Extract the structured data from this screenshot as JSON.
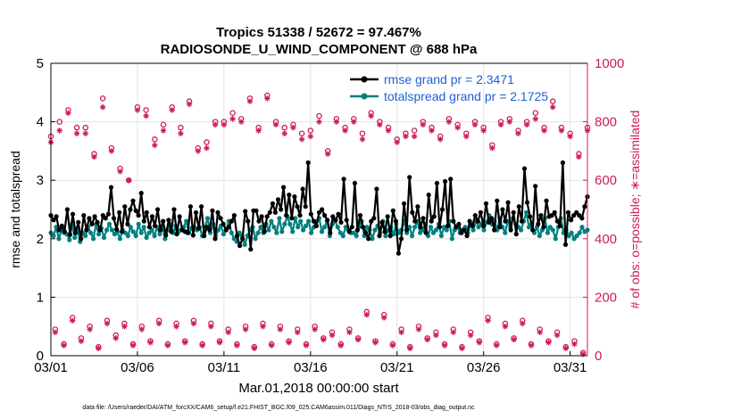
{
  "chart_data": {
    "type": "line",
    "title_line1": "Tropics 51338 / 52672 = 97.467%",
    "title_line2": "RADIOSONDE_U_WIND_COMPONENT @ 688 hPa",
    "xlabel": "Mar.01,2018 00:00:00 start",
    "ylabel_left": "rmse and totalspread",
    "ylabel_right": "# of obs: o=possible; ∗=assimilated",
    "xlim": [
      1,
      32
    ],
    "ylim_left": [
      0,
      5
    ],
    "ylim_right": [
      0,
      1000
    ],
    "x_tick_labels": [
      "03/01",
      "03/06",
      "03/11",
      "03/16",
      "03/21",
      "03/26",
      "03/31"
    ],
    "y_ticks_left": [
      "0",
      "1",
      "2",
      "3",
      "4",
      "5"
    ],
    "y_ticks_right": [
      "0",
      "200",
      "400",
      "600",
      "800",
      "1000"
    ],
    "grid": true,
    "legend_location": "top-right",
    "colors": {
      "rmse": "#000000",
      "spread": "#008080",
      "obs": "#cc1a5e",
      "legend_text": "#1f5fd6"
    },
    "series": [
      {
        "name": "rmse grand pr = 2.3471",
        "values": [
          2.4,
          2.32,
          2.38,
          2.15,
          2.22,
          2.12,
          2.5,
          2.07,
          2.42,
          2.1,
          2.28,
          2.0,
          2.4,
          2.15,
          2.35,
          2.25,
          2.38,
          2.28,
          2.15,
          2.4,
          2.35,
          2.42,
          2.88,
          2.35,
          2.16,
          2.45,
          2.12,
          2.55,
          2.25,
          2.5,
          2.65,
          2.48,
          2.4,
          2.78,
          2.3,
          2.45,
          2.2,
          2.38,
          2.22,
          2.5,
          2.15,
          2.3,
          2.06,
          2.32,
          2.12,
          2.5,
          2.08,
          2.38,
          2.15,
          2.12,
          2.1,
          2.55,
          2.06,
          2.45,
          2.18,
          2.55,
          2.05,
          2.2,
          2.15,
          2.48,
          2.0,
          2.45,
          2.35,
          2.25,
          2.15,
          2.2,
          2.3,
          2.4,
          2.05,
          1.88,
          2.0,
          2.47,
          2.3,
          1.82,
          2.48,
          2.48,
          2.3,
          2.38,
          2.12,
          2.38,
          2.45,
          2.6,
          2.45,
          2.67,
          2.5,
          2.88,
          2.4,
          2.75,
          2.35,
          2.72,
          2.55,
          2.4,
          2.85,
          2.55,
          3.3,
          2.42,
          2.3,
          2.22,
          2.45,
          2.5,
          2.4,
          2.32,
          2.1,
          2.38,
          2.32,
          2.42,
          2.28,
          3.02,
          2.32,
          2.12,
          2.2,
          2.95,
          2.15,
          2.4,
          2.2,
          2.1,
          2.0,
          2.3,
          2.35,
          2.85,
          2.05,
          2.28,
          2.12,
          2.38,
          2.05,
          2.48,
          2.3,
          1.75,
          2.0,
          2.6,
          2.15,
          3.05,
          2.45,
          2.3,
          2.55,
          2.2,
          2.35,
          2.1,
          2.75,
          2.3,
          2.38,
          2.95,
          2.2,
          2.5,
          2.98,
          2.22,
          3.02,
          2.3,
          2.2,
          2.25,
          2.1,
          2.15,
          2.05,
          2.3,
          2.22,
          2.4,
          2.3,
          2.45,
          2.22,
          2.6,
          2.28,
          2.35,
          2.15,
          2.65,
          2.2,
          2.5,
          2.3,
          2.62,
          2.15,
          2.45,
          2.08,
          2.55,
          2.3,
          3.2,
          2.62,
          2.38,
          2.15,
          2.9,
          2.25,
          2.4,
          2.2,
          2.65,
          2.38,
          2.4,
          2.45,
          2.3,
          2.22,
          3.3,
          1.9,
          2.45,
          2.32,
          2.4,
          2.45,
          2.4,
          2.35,
          2.55,
          2.72
        ]
      },
      {
        "name": "totalspread grand pr = 2.1725",
        "values": [
          2.1,
          2.05,
          2.2,
          2.0,
          2.15,
          2.1,
          2.08,
          1.98,
          2.25,
          2.02,
          2.15,
          1.95,
          2.1,
          2.05,
          2.2,
          2.1,
          2.0,
          2.25,
          2.08,
          2.18,
          2.02,
          2.15,
          2.25,
          2.15,
          2.08,
          2.12,
          2.0,
          2.15,
          2.1,
          2.05,
          2.2,
          2.12,
          2.05,
          2.25,
          2.1,
          2.2,
          2.02,
          2.1,
          2.15,
          2.05,
          2.2,
          2.08,
          2.2,
          2.0,
          2.15,
          2.25,
          2.1,
          2.22,
          2.12,
          2.15,
          2.2,
          2.3,
          2.1,
          2.18,
          2.2,
          2.15,
          2.2,
          2.05,
          2.2,
          2.35,
          2.1,
          2.25,
          2.05,
          2.15,
          2.22,
          2.08,
          2.15,
          2.3,
          2.1,
          2.0,
          1.95,
          2.1,
          2.05,
          1.9,
          2.05,
          2.15,
          2.2,
          2.0,
          2.1,
          2.2,
          2.1,
          2.25,
          2.15,
          2.3,
          2.2,
          2.1,
          2.35,
          2.12,
          2.25,
          2.38,
          2.25,
          2.12,
          2.35,
          2.2,
          2.3,
          2.15,
          2.22,
          2.3,
          2.1,
          2.2,
          2.3,
          2.35,
          2.12,
          2.2,
          2.3,
          2.05,
          2.25,
          2.3,
          2.2,
          2.1,
          2.05,
          2.2,
          2.15,
          2.1,
          2.1,
          2.05,
          2.2,
          2.3,
          2.05,
          2.2,
          2.15,
          2.0,
          2.15,
          2.22,
          2.1,
          2.3,
          2.05,
          2.15,
          2.2,
          2.08,
          2.25,
          2.1,
          2.15,
          2.3,
          2.1,
          2.2,
          2.05,
          2.2,
          2.3,
          2.1,
          2.15,
          2.25,
          2.05,
          2.2,
          2.1,
          2.15,
          2.25,
          2.05,
          2.2,
          2.15,
          2.3,
          2.0,
          2.15,
          2.2,
          2.1,
          2.15,
          2.2,
          2.1,
          2.25,
          2.15,
          2.3,
          2.2,
          2.25,
          2.15,
          2.28,
          2.4,
          2.25,
          2.3,
          2.15,
          2.35,
          2.2,
          2.1,
          2.3,
          2.2,
          2.35,
          2.25,
          2.2,
          2.15,
          2.3,
          2.45,
          2.2,
          2.25,
          2.1,
          2.2,
          2.05,
          2.15,
          2.35,
          2.1,
          2.2,
          2.15,
          2.0,
          2.2,
          2.35,
          2.1,
          2.15,
          2.05,
          2.1,
          2.0,
          2.05,
          2.1,
          2.2,
          2.12,
          2.15
        ]
      }
    ],
    "obs_counts_00z": {
      "x": [
        1,
        1.5,
        2,
        2.5,
        3,
        3.5,
        4,
        4.5,
        5,
        5.5,
        6,
        6.5,
        7,
        7.5,
        8,
        8.5,
        9,
        9.5,
        10,
        10.5,
        11,
        11.5,
        12,
        12.5,
        13,
        13.5,
        14,
        14.5,
        15,
        15.5,
        16,
        16.5,
        17,
        17.5,
        18,
        18.5,
        19,
        19.5,
        20,
        20.5,
        21,
        21.5,
        22,
        22.5,
        23,
        23.5,
        24,
        24.5,
        25,
        25.5,
        26,
        26.5,
        27,
        27.5,
        28,
        28.5,
        29,
        29.5,
        30,
        30.5,
        31,
        31.5,
        32
      ],
      "possible": [
        750,
        800,
        840,
        780,
        780,
        690,
        880,
        710,
        640,
        600,
        850,
        840,
        740,
        790,
        850,
        780,
        870,
        710,
        730,
        800,
        800,
        830,
        810,
        880,
        780,
        890,
        800,
        780,
        790,
        760,
        770,
        820,
        700,
        810,
        780,
        810,
        760,
        830,
        800,
        780,
        740,
        760,
        770,
        800,
        780,
        750,
        810,
        790,
        760,
        800,
        780,
        720,
        800,
        810,
        770,
        800,
        830,
        780,
        870,
        780,
        760,
        690,
        780
      ],
      "assimilated": [
        730,
        770,
        830,
        760,
        760,
        680,
        850,
        700,
        630,
        600,
        840,
        820,
        720,
        770,
        840,
        760,
        860,
        700,
        710,
        790,
        790,
        810,
        800,
        870,
        770,
        880,
        790,
        760,
        780,
        740,
        750,
        800,
        690,
        800,
        770,
        800,
        740,
        820,
        790,
        770,
        730,
        750,
        750,
        790,
        770,
        740,
        800,
        780,
        750,
        790,
        770,
        710,
        790,
        800,
        760,
        790,
        810,
        770,
        850,
        770,
        750,
        680,
        770
      ]
    },
    "obs_counts_12z": {
      "x": [
        1.25,
        1.75,
        2.25,
        2.75,
        3.25,
        3.75,
        4.25,
        4.75,
        5.25,
        5.75,
        6.25,
        6.75,
        7.25,
        7.75,
        8.25,
        8.75,
        9.25,
        9.75,
        10.25,
        10.75,
        11.25,
        11.75,
        12.25,
        12.75,
        13.25,
        13.75,
        14.25,
        14.75,
        15.25,
        15.75,
        16.25,
        16.75,
        17.25,
        17.75,
        18.25,
        18.75,
        19.25,
        19.75,
        20.25,
        20.75,
        21.25,
        21.75,
        22.25,
        22.75,
        23.25,
        23.75,
        24.25,
        24.75,
        25.25,
        25.75,
        26.25,
        26.75,
        27.25,
        27.75,
        28.25,
        28.75,
        29.25,
        29.75,
        30.25,
        30.75,
        31.25,
        31.75
      ],
      "possible": [
        90,
        40,
        130,
        60,
        100,
        30,
        120,
        70,
        110,
        40,
        100,
        50,
        120,
        40,
        110,
        50,
        120,
        40,
        110,
        50,
        90,
        40,
        100,
        30,
        110,
        40,
        100,
        50,
        90,
        40,
        100,
        60,
        80,
        40,
        90,
        60,
        150,
        50,
        140,
        40,
        90,
        30,
        100,
        60,
        80,
        40,
        90,
        30,
        80,
        50,
        130,
        40,
        110,
        60,
        120,
        40,
        90,
        50,
        80,
        30,
        50,
        10
      ],
      "assimilated": [
        80,
        35,
        120,
        50,
        90,
        25,
        110,
        60,
        100,
        35,
        90,
        45,
        110,
        35,
        100,
        45,
        110,
        35,
        100,
        45,
        80,
        35,
        90,
        25,
        100,
        35,
        90,
        45,
        80,
        35,
        90,
        55,
        70,
        35,
        80,
        55,
        140,
        45,
        130,
        35,
        80,
        25,
        90,
        55,
        70,
        35,
        80,
        25,
        70,
        45,
        120,
        35,
        100,
        55,
        110,
        35,
        80,
        45,
        70,
        25,
        40,
        5
      ]
    }
  },
  "footer": "data file: /Users/raeder/DAI/ATM_forcXX/CAM6_setup/f.e21.FHIST_BGC.f09_025.CAM6assim.011/Diags_NTrS_2018-03/obs_diag_output.nc"
}
